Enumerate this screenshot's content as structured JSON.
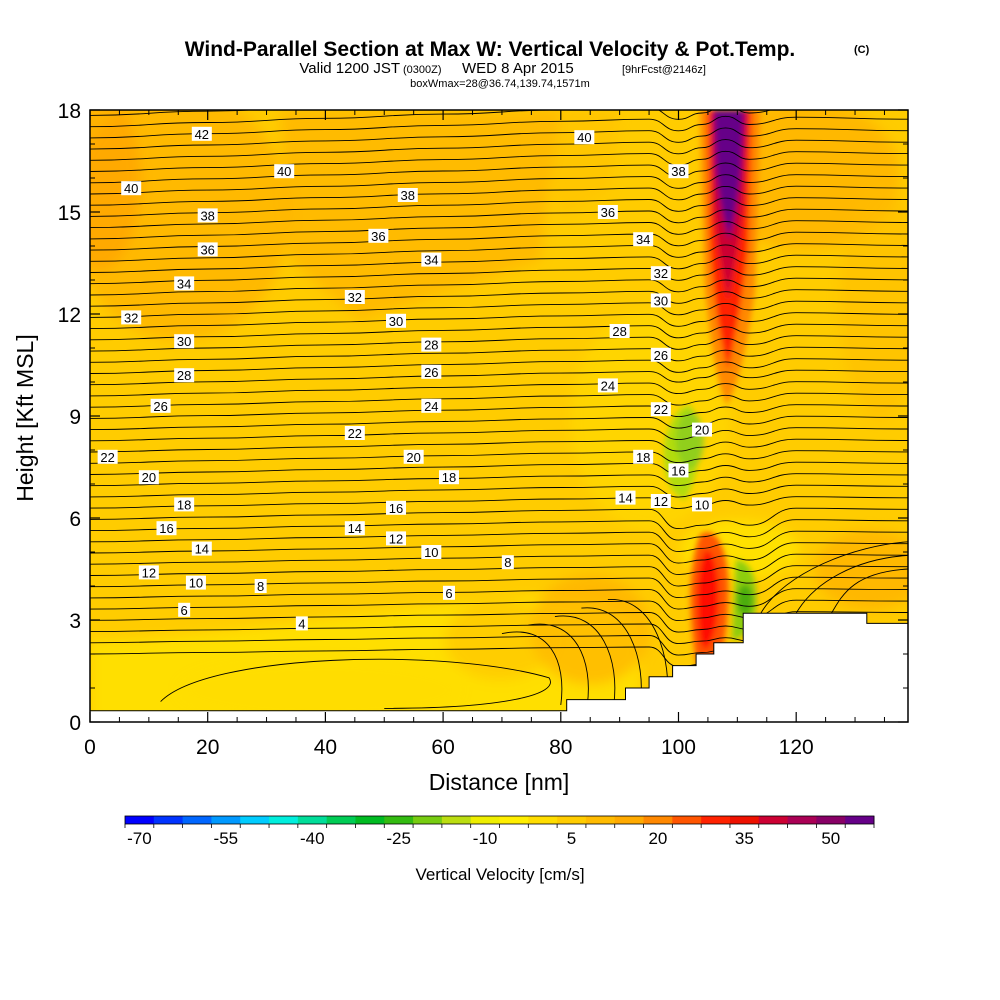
{
  "title": {
    "main": "Wind-Parallel Section at Max W: Vertical Velocity & Pot.Temp.",
    "copyright": "(C)",
    "valid_pre": "Valid 1200 JST",
    "valid_z": "(0300Z)",
    "valid_post": "WED 8 Apr 2015",
    "fcst": "[9hrFcst@2146z]",
    "box": "boxWmax=28@36.74,139.74,1571m"
  },
  "chart_data": {
    "type": "heatmap",
    "xlabel": "Distance [nm]",
    "ylabel": "Height [Kft MSL]",
    "xlim": [
      0,
      139
    ],
    "ylim": [
      0,
      18
    ],
    "x_ticks": [
      0,
      20,
      40,
      60,
      80,
      100,
      120
    ],
    "y_ticks": [
      0,
      3,
      6,
      9,
      12,
      15,
      18
    ],
    "colorbar": {
      "title": "Vertical Velocity [cm/s]",
      "levels": [
        -70,
        -65,
        -60,
        -55,
        -50,
        -45,
        -40,
        -35,
        -30,
        -25,
        -20,
        -15,
        -10,
        -5,
        0,
        5,
        10,
        15,
        20,
        25,
        30,
        35,
        40,
        45,
        50,
        55
      ],
      "tick_labels": [
        "-70",
        "-55",
        "-40",
        "-25",
        "-10",
        "5",
        "20",
        "35",
        "50"
      ],
      "colors": [
        "#0000ff",
        "#0033ff",
        "#0066ff",
        "#0099ff",
        "#00ccff",
        "#00eedd",
        "#00dd99",
        "#00cc55",
        "#00bb22",
        "#33bb11",
        "#77cc11",
        "#bbdd11",
        "#eeee00",
        "#ffee00",
        "#ffdd00",
        "#ffcc00",
        "#ffbb00",
        "#ffaa00",
        "#ff8800",
        "#ff5500",
        "#ff2200",
        "#ee1100",
        "#cc0033",
        "#aa0055",
        "#880066",
        "#660088"
      ]
    },
    "vertical_velocity_features": [
      {
        "name": "updraft column (upper)",
        "x": [
          105,
          111
        ],
        "y": [
          9,
          18
        ],
        "max_cm_s": 55
      },
      {
        "name": "updraft (low level)",
        "x": [
          102,
          107
        ],
        "y": [
          1.3,
          5.5
        ],
        "max_cm_s": 35
      },
      {
        "name": "downdraft (lee)",
        "x": [
          94,
          101
        ],
        "y": [
          7,
          9.5
        ],
        "min_cm_s": -15
      },
      {
        "name": "downdraft (near terrain)",
        "x": [
          108,
          112
        ],
        "y": [
          2.5,
          5
        ],
        "min_cm_s": -25
      }
    ],
    "terrain_profile": {
      "x": [
        0,
        81,
        81,
        91,
        91,
        95,
        95,
        99,
        99,
        103,
        103,
        106,
        106,
        111,
        111,
        132,
        132,
        139
      ],
      "y": [
        0.33,
        0.33,
        0.66,
        0.66,
        1.0,
        1.0,
        1.33,
        1.33,
        1.66,
        1.66,
        2.0,
        2.0,
        2.33,
        2.33,
        3.2,
        3.2,
        2.9,
        2.9
      ]
    },
    "theta_contour_labels": [
      {
        "x": 19,
        "y": 17.3,
        "v": "42"
      },
      {
        "x": 33,
        "y": 16.2,
        "v": "40"
      },
      {
        "x": 7,
        "y": 15.7,
        "v": "40"
      },
      {
        "x": 84,
        "y": 17.2,
        "v": "40"
      },
      {
        "x": 20,
        "y": 14.9,
        "v": "38"
      },
      {
        "x": 54,
        "y": 15.5,
        "v": "38"
      },
      {
        "x": 100,
        "y": 16.2,
        "v": "38"
      },
      {
        "x": 20,
        "y": 13.9,
        "v": "36"
      },
      {
        "x": 49,
        "y": 14.3,
        "v": "36"
      },
      {
        "x": 88,
        "y": 15.0,
        "v": "36"
      },
      {
        "x": 16,
        "y": 12.9,
        "v": "34"
      },
      {
        "x": 58,
        "y": 13.6,
        "v": "34"
      },
      {
        "x": 94,
        "y": 14.2,
        "v": "34"
      },
      {
        "x": 7,
        "y": 11.9,
        "v": "32"
      },
      {
        "x": 45,
        "y": 12.5,
        "v": "32"
      },
      {
        "x": 97,
        "y": 13.2,
        "v": "32"
      },
      {
        "x": 16,
        "y": 11.2,
        "v": "30"
      },
      {
        "x": 52,
        "y": 11.8,
        "v": "30"
      },
      {
        "x": 97,
        "y": 12.4,
        "v": "30"
      },
      {
        "x": 16,
        "y": 10.2,
        "v": "28"
      },
      {
        "x": 58,
        "y": 11.1,
        "v": "28"
      },
      {
        "x": 90,
        "y": 11.5,
        "v": "28"
      },
      {
        "x": 12,
        "y": 9.3,
        "v": "26"
      },
      {
        "x": 58,
        "y": 10.3,
        "v": "26"
      },
      {
        "x": 97,
        "y": 10.8,
        "v": "26"
      },
      {
        "x": 58,
        "y": 9.3,
        "v": "24"
      },
      {
        "x": 88,
        "y": 9.9,
        "v": "24"
      },
      {
        "x": 3,
        "y": 7.8,
        "v": "22"
      },
      {
        "x": 45,
        "y": 8.5,
        "v": "22"
      },
      {
        "x": 97,
        "y": 9.2,
        "v": "22"
      },
      {
        "x": 10,
        "y": 7.2,
        "v": "20"
      },
      {
        "x": 55,
        "y": 7.8,
        "v": "20"
      },
      {
        "x": 104,
        "y": 8.6,
        "v": "20"
      },
      {
        "x": 16,
        "y": 6.4,
        "v": "18"
      },
      {
        "x": 61,
        "y": 7.2,
        "v": "18"
      },
      {
        "x": 94,
        "y": 7.8,
        "v": "18"
      },
      {
        "x": 52,
        "y": 6.3,
        "v": "16"
      },
      {
        "x": 100,
        "y": 7.4,
        "v": "16"
      },
      {
        "x": 13,
        "y": 5.7,
        "v": "16"
      },
      {
        "x": 45,
        "y": 5.7,
        "v": "14"
      },
      {
        "x": 19,
        "y": 5.1,
        "v": "14"
      },
      {
        "x": 91,
        "y": 6.6,
        "v": "14"
      },
      {
        "x": 52,
        "y": 5.4,
        "v": "12"
      },
      {
        "x": 10,
        "y": 4.4,
        "v": "12"
      },
      {
        "x": 97,
        "y": 6.5,
        "v": "12"
      },
      {
        "x": 58,
        "y": 5.0,
        "v": "10"
      },
      {
        "x": 18,
        "y": 4.1,
        "v": "10"
      },
      {
        "x": 104,
        "y": 6.4,
        "v": "10"
      },
      {
        "x": 29,
        "y": 4.0,
        "v": "8"
      },
      {
        "x": 71,
        "y": 4.7,
        "v": "8"
      },
      {
        "x": 16,
        "y": 3.3,
        "v": "6"
      },
      {
        "x": 61,
        "y": 3.8,
        "v": "6"
      },
      {
        "x": 36,
        "y": 2.9,
        "v": "4"
      }
    ]
  }
}
